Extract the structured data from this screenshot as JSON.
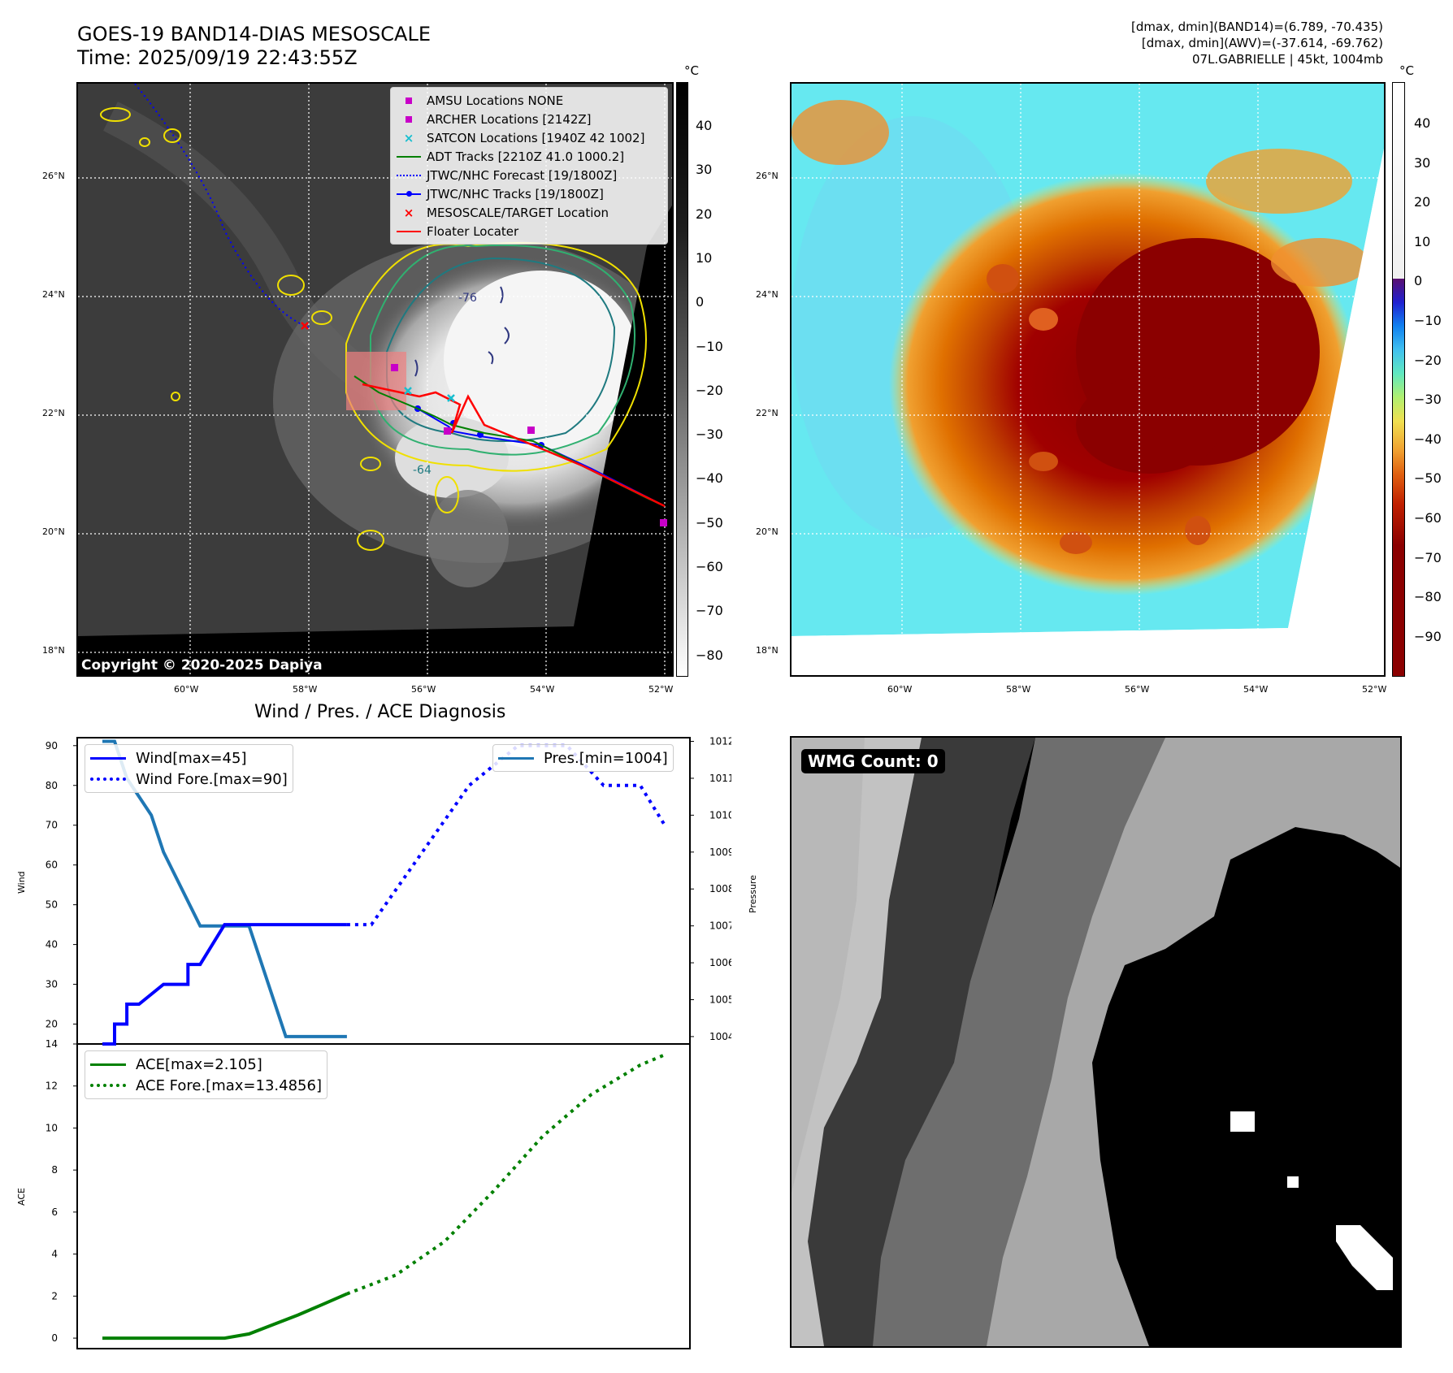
{
  "header": {
    "title_line1": "GOES-19 BAND14-DIAS MESOSCALE",
    "title_line2": "Time: 2025/09/19 22:43:55Z",
    "right_line1": "[dmax, dmin](BAND14)=(6.789, -70.435)",
    "right_line2": "[dmax, dmin](AWV)=(-37.614, -69.762)",
    "right_line3": "07L.GABRIELLE | 45kt, 1004mb"
  },
  "map_axes": {
    "lon_ticks": [
      "60°W",
      "58°W",
      "56°W",
      "54°W",
      "52°W"
    ],
    "lat_ticks": [
      "26°N",
      "24°N",
      "22°N",
      "20°N",
      "18°N"
    ]
  },
  "colorbar_gray": {
    "unit": "°C",
    "ticks": [
      "40",
      "30",
      "20",
      "10",
      "0",
      "−10",
      "−20",
      "−30",
      "−40",
      "−50",
      "−60",
      "−70",
      "−80"
    ]
  },
  "colorbar_color": {
    "unit": "°C",
    "ticks": [
      "40",
      "30",
      "20",
      "10",
      "0",
      "−10",
      "−20",
      "−30",
      "−40",
      "−50",
      "−60",
      "−70",
      "−80",
      "−90"
    ]
  },
  "map_legend": [
    {
      "label": "AMSU Locations NONE",
      "color": "#c800c8"
    },
    {
      "label": "ARCHER Locations [2142Z]",
      "color": "#c800c8"
    },
    {
      "label": "SATCON Locations [1940Z 42 1002]",
      "color": "#17becf"
    },
    {
      "label": "ADT Tracks [2210Z 41.0 1000.2]",
      "color": "#008000"
    },
    {
      "label": "JTWC/NHC Forecast [19/1800Z]",
      "color": "#0000ff"
    },
    {
      "label": "JTWC/NHC Tracks [19/1800Z]",
      "color": "#0000ff"
    },
    {
      "label": "MESOSCALE/TARGET Location",
      "color": "#ff0000"
    },
    {
      "label": "Floater Locater",
      "color": "#ff0000"
    }
  ],
  "contour_labels": [
    "-76",
    "-64"
  ],
  "copyright": "Copyright © 2020-2025 Dapiya",
  "wmg": {
    "label": "WMG Count: 0"
  },
  "chart_data": [
    {
      "type": "line",
      "title": "Wind / Pres. / ACE Diagnosis",
      "ylabel": "Wind",
      "ylabel_right": "Pressure",
      "ylim": [
        15,
        92
      ],
      "ylim_right": [
        1003.8,
        1012.1
      ],
      "yticks": [
        20,
        30,
        40,
        50,
        60,
        70,
        80,
        90
      ],
      "yticks_right": [
        1004,
        1005,
        1006,
        1007,
        1008,
        1009,
        1010,
        1011,
        1012
      ],
      "series": [
        {
          "name": "Wind[max=45]",
          "color": "#0000ff",
          "style": "solid",
          "axis": "left",
          "x": [
            0,
            1,
            1,
            2,
            2,
            3,
            3,
            5,
            5,
            7,
            7,
            8,
            8,
            10,
            14,
            20
          ],
          "values": [
            15,
            15,
            20,
            20,
            25,
            25,
            25,
            30,
            30,
            30,
            35,
            35,
            35,
            45,
            45,
            45
          ]
        },
        {
          "name": "Wind Fore.[max=90]",
          "color": "#0000ff",
          "style": "dotted",
          "axis": "left",
          "x": [
            20,
            22,
            30,
            34,
            37,
            38,
            41,
            42,
            44,
            46
          ],
          "values": [
            45,
            45,
            80,
            90,
            90,
            90,
            80,
            80,
            80,
            70
          ]
        },
        {
          "name": "Pres.[min=1004]",
          "color": "#1f77b4",
          "style": "solid",
          "axis": "right",
          "x": [
            0,
            1,
            2,
            4,
            5,
            8,
            10,
            12,
            15,
            20
          ],
          "values": [
            1012,
            1012,
            1011,
            1010,
            1009,
            1007,
            1007,
            1007,
            1004,
            1004
          ]
        }
      ]
    },
    {
      "type": "line",
      "ylabel": "ACE",
      "ylim": [
        -0.5,
        14
      ],
      "yticks": [
        0,
        2,
        4,
        6,
        8,
        10,
        12,
        14
      ],
      "series": [
        {
          "name": "ACE[max=2.105]",
          "color": "#008000",
          "style": "solid",
          "x": [
            0,
            10,
            12,
            14,
            16,
            18,
            20
          ],
          "values": [
            0,
            0,
            0.2,
            0.65,
            1.1,
            1.6,
            2.105
          ]
        },
        {
          "name": "ACE Fore.[max=13.4856]",
          "color": "#008000",
          "style": "dotted",
          "x": [
            20,
            24,
            28,
            32,
            36,
            40,
            44,
            46
          ],
          "values": [
            2.105,
            3,
            4.6,
            7,
            9.6,
            11.6,
            13,
            13.4856
          ]
        }
      ]
    }
  ]
}
